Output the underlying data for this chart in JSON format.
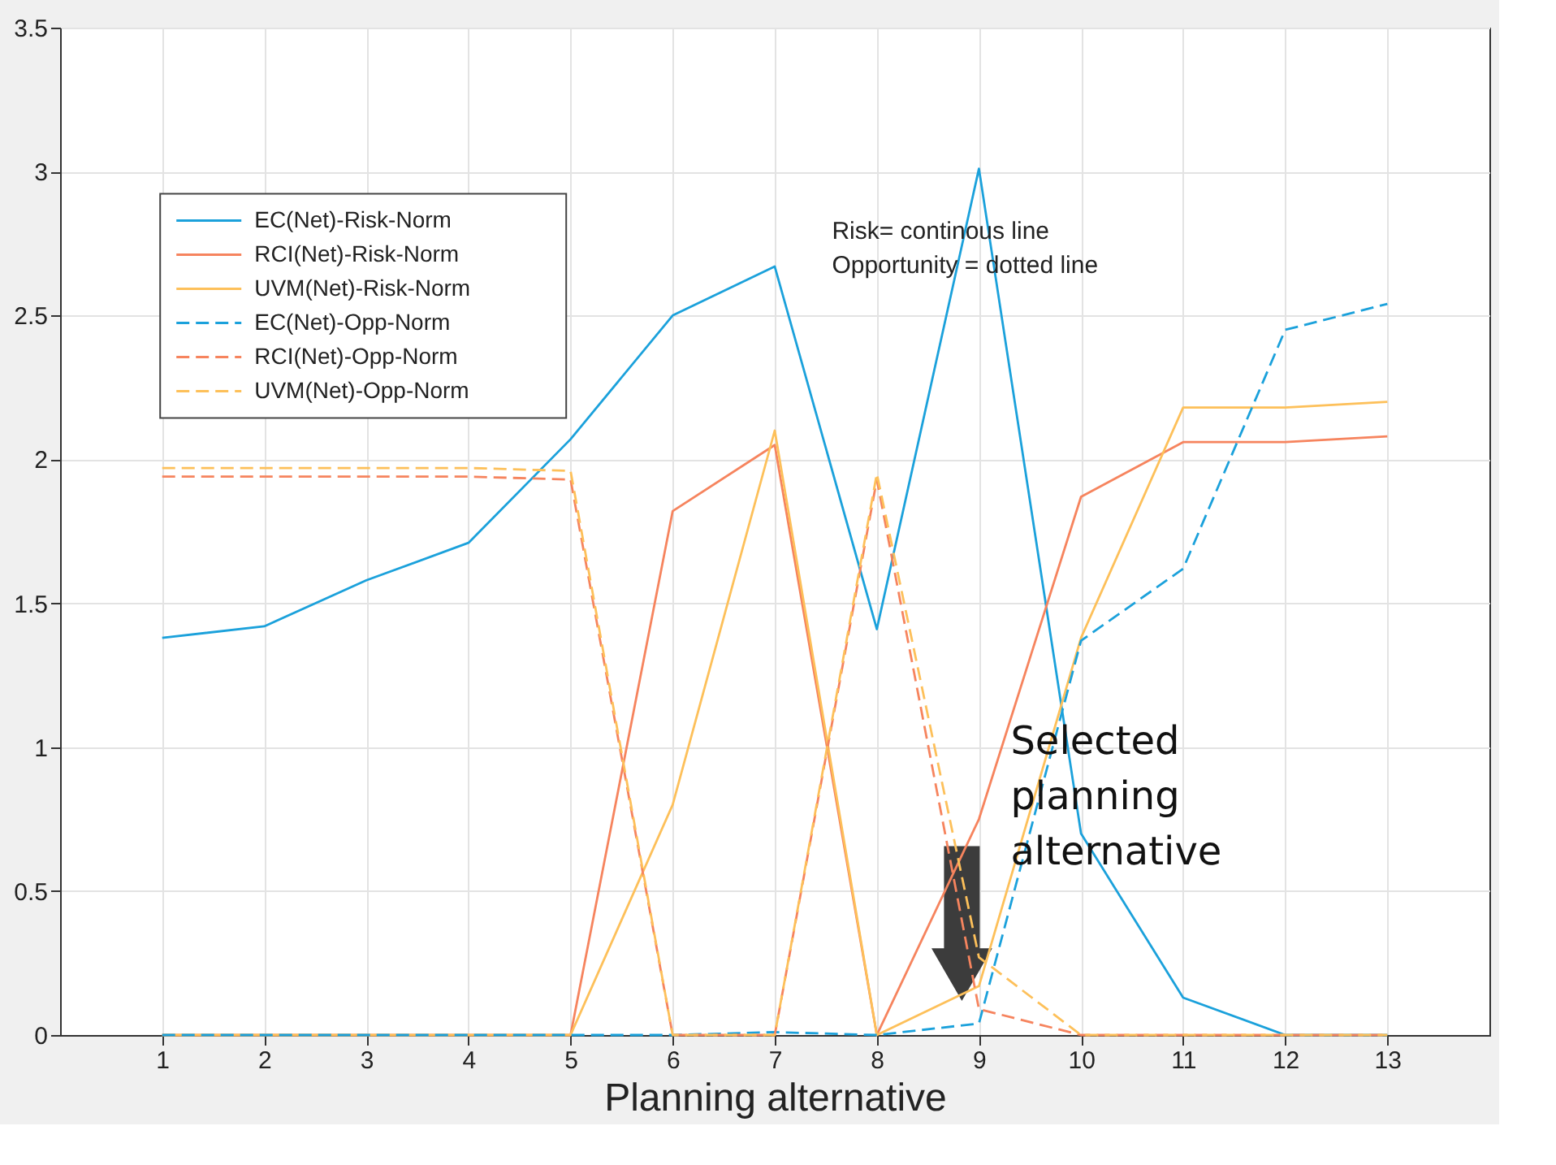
{
  "chart_data": {
    "type": "line",
    "xlabel": "Planning alternative",
    "x": [
      1,
      2,
      3,
      4,
      5,
      6,
      7,
      8,
      9,
      10,
      11,
      12,
      13
    ],
    "xlim": [
      0,
      14
    ],
    "xticks": [
      1,
      2,
      3,
      4,
      5,
      6,
      7,
      8,
      9,
      10,
      11,
      12,
      13
    ],
    "ylim": [
      0,
      3.5
    ],
    "yticks": [
      0,
      0.5,
      1,
      1.5,
      2,
      2.5,
      3,
      3.5
    ],
    "grid": true,
    "legend": "top left",
    "marker": "none",
    "series": [
      {
        "name": "EC(Net)-Risk-Norm",
        "color": "#1ba1db",
        "line_style": "solid",
        "values": [
          1.38,
          1.42,
          1.58,
          1.71,
          2.07,
          2.5,
          2.67,
          1.41,
          3.01,
          0.7,
          0.13,
          0,
          0
        ]
      },
      {
        "name": "RCI(Net)-Risk-Norm",
        "color": "#f6845e",
        "line_style": "solid",
        "values": [
          0,
          0,
          0,
          0,
          0,
          1.82,
          2.05,
          0,
          0.75,
          1.87,
          2.06,
          2.06,
          2.08
        ]
      },
      {
        "name": "UVM(Net)-Risk-Norm",
        "color": "#fdc05a",
        "line_style": "solid",
        "values": [
          0,
          0,
          0,
          0,
          0,
          0.8,
          2.1,
          0,
          0.17,
          1.38,
          2.18,
          2.18,
          2.2
        ]
      },
      {
        "name": "EC(Net)-Opp-Norm",
        "color": "#1ba1db",
        "line_style": "dashed",
        "values": [
          0,
          0,
          0,
          0,
          0,
          0,
          0.01,
          0,
          0.04,
          1.37,
          1.62,
          2.45,
          2.54
        ]
      },
      {
        "name": "RCI(Net)-Opp-Norm",
        "color": "#f6845e",
        "line_style": "dashed",
        "values": [
          1.94,
          1.94,
          1.94,
          1.94,
          1.93,
          0,
          0,
          1.93,
          0.09,
          0,
          0,
          0,
          0
        ]
      },
      {
        "name": "UVM(Net)-Opp-Norm",
        "color": "#fdc05a",
        "line_style": "dashed",
        "values": [
          1.97,
          1.97,
          1.97,
          1.97,
          1.96,
          0,
          0,
          1.95,
          0.27,
          0,
          0,
          0,
          0
        ]
      }
    ],
    "annotations": [
      "Risk= continous line",
      "Opportunity = dotted line",
      "Selected planning alternative"
    ]
  }
}
